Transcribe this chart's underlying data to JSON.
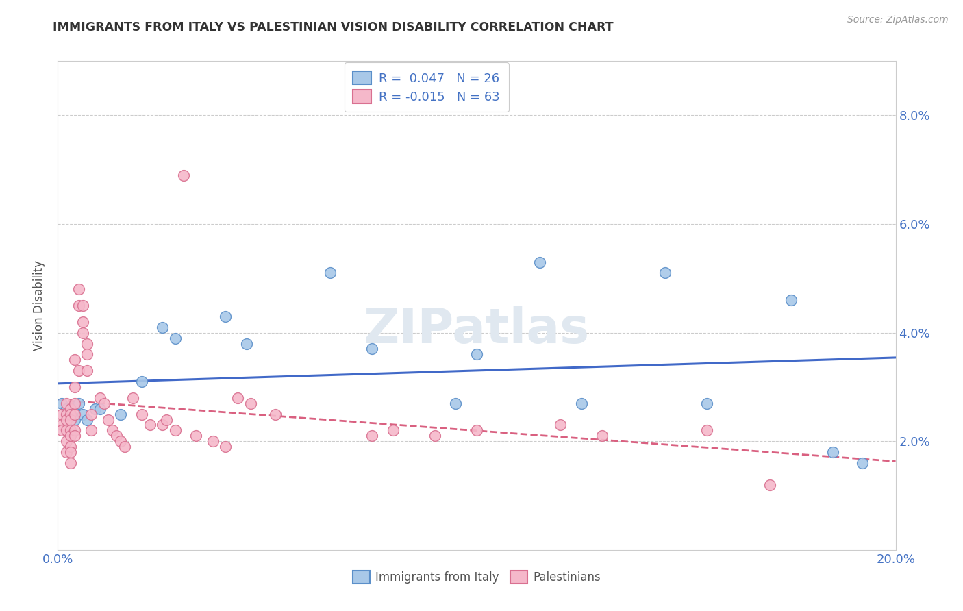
{
  "title": "IMMIGRANTS FROM ITALY VS PALESTINIAN VISION DISABILITY CORRELATION CHART",
  "source": "Source: ZipAtlas.com",
  "ylabel": "Vision Disability",
  "xlim": [
    0.0,
    0.2
  ],
  "ylim": [
    0.0,
    0.09
  ],
  "yticks": [
    0.02,
    0.04,
    0.06,
    0.08
  ],
  "ytick_labels": [
    "2.0%",
    "4.0%",
    "6.0%",
    "8.0%"
  ],
  "xticks": [
    0.0,
    0.05,
    0.1,
    0.15,
    0.2
  ],
  "xtick_labels": [
    "0.0%",
    "",
    "",
    "",
    "20.0%"
  ],
  "italy_color": "#a8c8e8",
  "italy_edge_color": "#5b8fc9",
  "palestine_color": "#f5b8ca",
  "palestine_edge_color": "#d97090",
  "italy_line_color": "#4169c8",
  "palestine_line_color": "#d96080",
  "italy_scatter": [
    [
      0.001,
      0.027
    ],
    [
      0.002,
      0.026
    ],
    [
      0.003,
      0.025
    ],
    [
      0.004,
      0.024
    ],
    [
      0.005,
      0.027
    ],
    [
      0.006,
      0.025
    ],
    [
      0.007,
      0.024
    ],
    [
      0.009,
      0.026
    ],
    [
      0.01,
      0.026
    ],
    [
      0.015,
      0.025
    ],
    [
      0.02,
      0.031
    ],
    [
      0.025,
      0.041
    ],
    [
      0.028,
      0.039
    ],
    [
      0.04,
      0.043
    ],
    [
      0.045,
      0.038
    ],
    [
      0.065,
      0.051
    ],
    [
      0.075,
      0.037
    ],
    [
      0.095,
      0.027
    ],
    [
      0.1,
      0.036
    ],
    [
      0.115,
      0.053
    ],
    [
      0.125,
      0.027
    ],
    [
      0.145,
      0.051
    ],
    [
      0.155,
      0.027
    ],
    [
      0.175,
      0.046
    ],
    [
      0.185,
      0.018
    ],
    [
      0.192,
      0.016
    ]
  ],
  "palestine_scatter": [
    [
      0.001,
      0.025
    ],
    [
      0.001,
      0.023
    ],
    [
      0.001,
      0.022
    ],
    [
      0.002,
      0.027
    ],
    [
      0.002,
      0.025
    ],
    [
      0.002,
      0.024
    ],
    [
      0.002,
      0.022
    ],
    [
      0.002,
      0.02
    ],
    [
      0.002,
      0.018
    ],
    [
      0.003,
      0.026
    ],
    [
      0.003,
      0.025
    ],
    [
      0.003,
      0.024
    ],
    [
      0.003,
      0.022
    ],
    [
      0.003,
      0.021
    ],
    [
      0.003,
      0.019
    ],
    [
      0.003,
      0.018
    ],
    [
      0.003,
      0.016
    ],
    [
      0.004,
      0.035
    ],
    [
      0.004,
      0.03
    ],
    [
      0.004,
      0.027
    ],
    [
      0.004,
      0.025
    ],
    [
      0.004,
      0.022
    ],
    [
      0.004,
      0.021
    ],
    [
      0.005,
      0.048
    ],
    [
      0.005,
      0.045
    ],
    [
      0.005,
      0.033
    ],
    [
      0.006,
      0.045
    ],
    [
      0.006,
      0.042
    ],
    [
      0.006,
      0.04
    ],
    [
      0.007,
      0.038
    ],
    [
      0.007,
      0.036
    ],
    [
      0.007,
      0.033
    ],
    [
      0.008,
      0.025
    ],
    [
      0.008,
      0.022
    ],
    [
      0.01,
      0.028
    ],
    [
      0.011,
      0.027
    ],
    [
      0.012,
      0.024
    ],
    [
      0.013,
      0.022
    ],
    [
      0.014,
      0.021
    ],
    [
      0.015,
      0.02
    ],
    [
      0.016,
      0.019
    ],
    [
      0.018,
      0.028
    ],
    [
      0.02,
      0.025
    ],
    [
      0.022,
      0.023
    ],
    [
      0.025,
      0.023
    ],
    [
      0.026,
      0.024
    ],
    [
      0.028,
      0.022
    ],
    [
      0.03,
      0.069
    ],
    [
      0.033,
      0.021
    ],
    [
      0.037,
      0.02
    ],
    [
      0.04,
      0.019
    ],
    [
      0.043,
      0.028
    ],
    [
      0.046,
      0.027
    ],
    [
      0.052,
      0.025
    ],
    [
      0.075,
      0.021
    ],
    [
      0.08,
      0.022
    ],
    [
      0.09,
      0.021
    ],
    [
      0.1,
      0.022
    ],
    [
      0.12,
      0.023
    ],
    [
      0.13,
      0.021
    ],
    [
      0.155,
      0.022
    ],
    [
      0.17,
      0.012
    ]
  ],
  "background_color": "#ffffff",
  "grid_color": "#cccccc",
  "watermark": "ZIPatlas"
}
